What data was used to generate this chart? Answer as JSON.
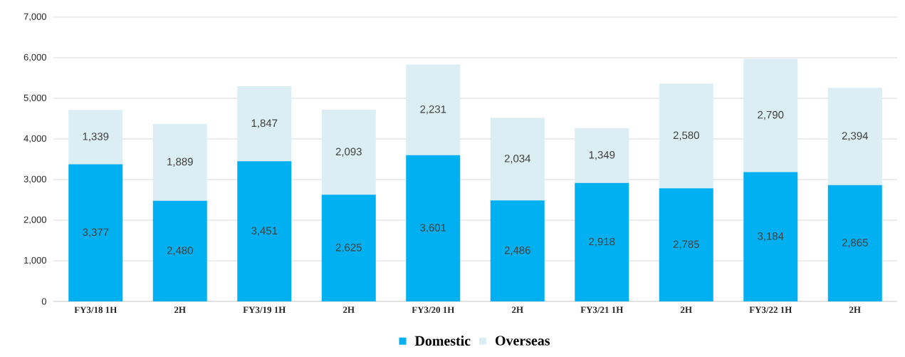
{
  "chart_data": {
    "type": "bar",
    "stacked": true,
    "grid": "y",
    "legend": "bottom",
    "categories": [
      "FY3/18 1H",
      "2H",
      "FY3/19 1H",
      "2H",
      "FY3/20 1H",
      "2H",
      "FY3/21 1H",
      "2H",
      "FY3/22 1H",
      "2H"
    ],
    "series": [
      {
        "name": "Domestic",
        "color": "#00b0f0",
        "values": [
          3377,
          2480,
          3451,
          2625,
          3601,
          2486,
          2918,
          2785,
          3184,
          2865
        ],
        "value_labels": [
          "3,377",
          "2,480",
          "3,451",
          "2,625",
          "3,601",
          "2,486",
          "2,918",
          "2,785",
          "3,184",
          "2,865"
        ]
      },
      {
        "name": "Overseas",
        "color": "#daeef3",
        "values": [
          1339,
          1889,
          1847,
          2093,
          2231,
          2034,
          1349,
          2580,
          2790,
          2394
        ],
        "value_labels": [
          "1,339",
          "1,889",
          "1,847",
          "2,093",
          "2,231",
          "2,034",
          "1,349",
          "2,580",
          "2,790",
          "2,394"
        ]
      }
    ],
    "ylim": [
      0,
      7000
    ],
    "yticks": [
      0,
      {
        "value": 1000,
        "label": "1,000"
      },
      {
        "value": 2000,
        "label": "2,000"
      },
      {
        "value": 3000,
        "label": "3,000"
      },
      {
        "value": 4000,
        "label": "4,000"
      },
      {
        "value": 5000,
        "label": "5,000"
      },
      {
        "value": 6000,
        "label": "6,000"
      },
      {
        "value": 7000,
        "label": "7,000"
      }
    ]
  }
}
